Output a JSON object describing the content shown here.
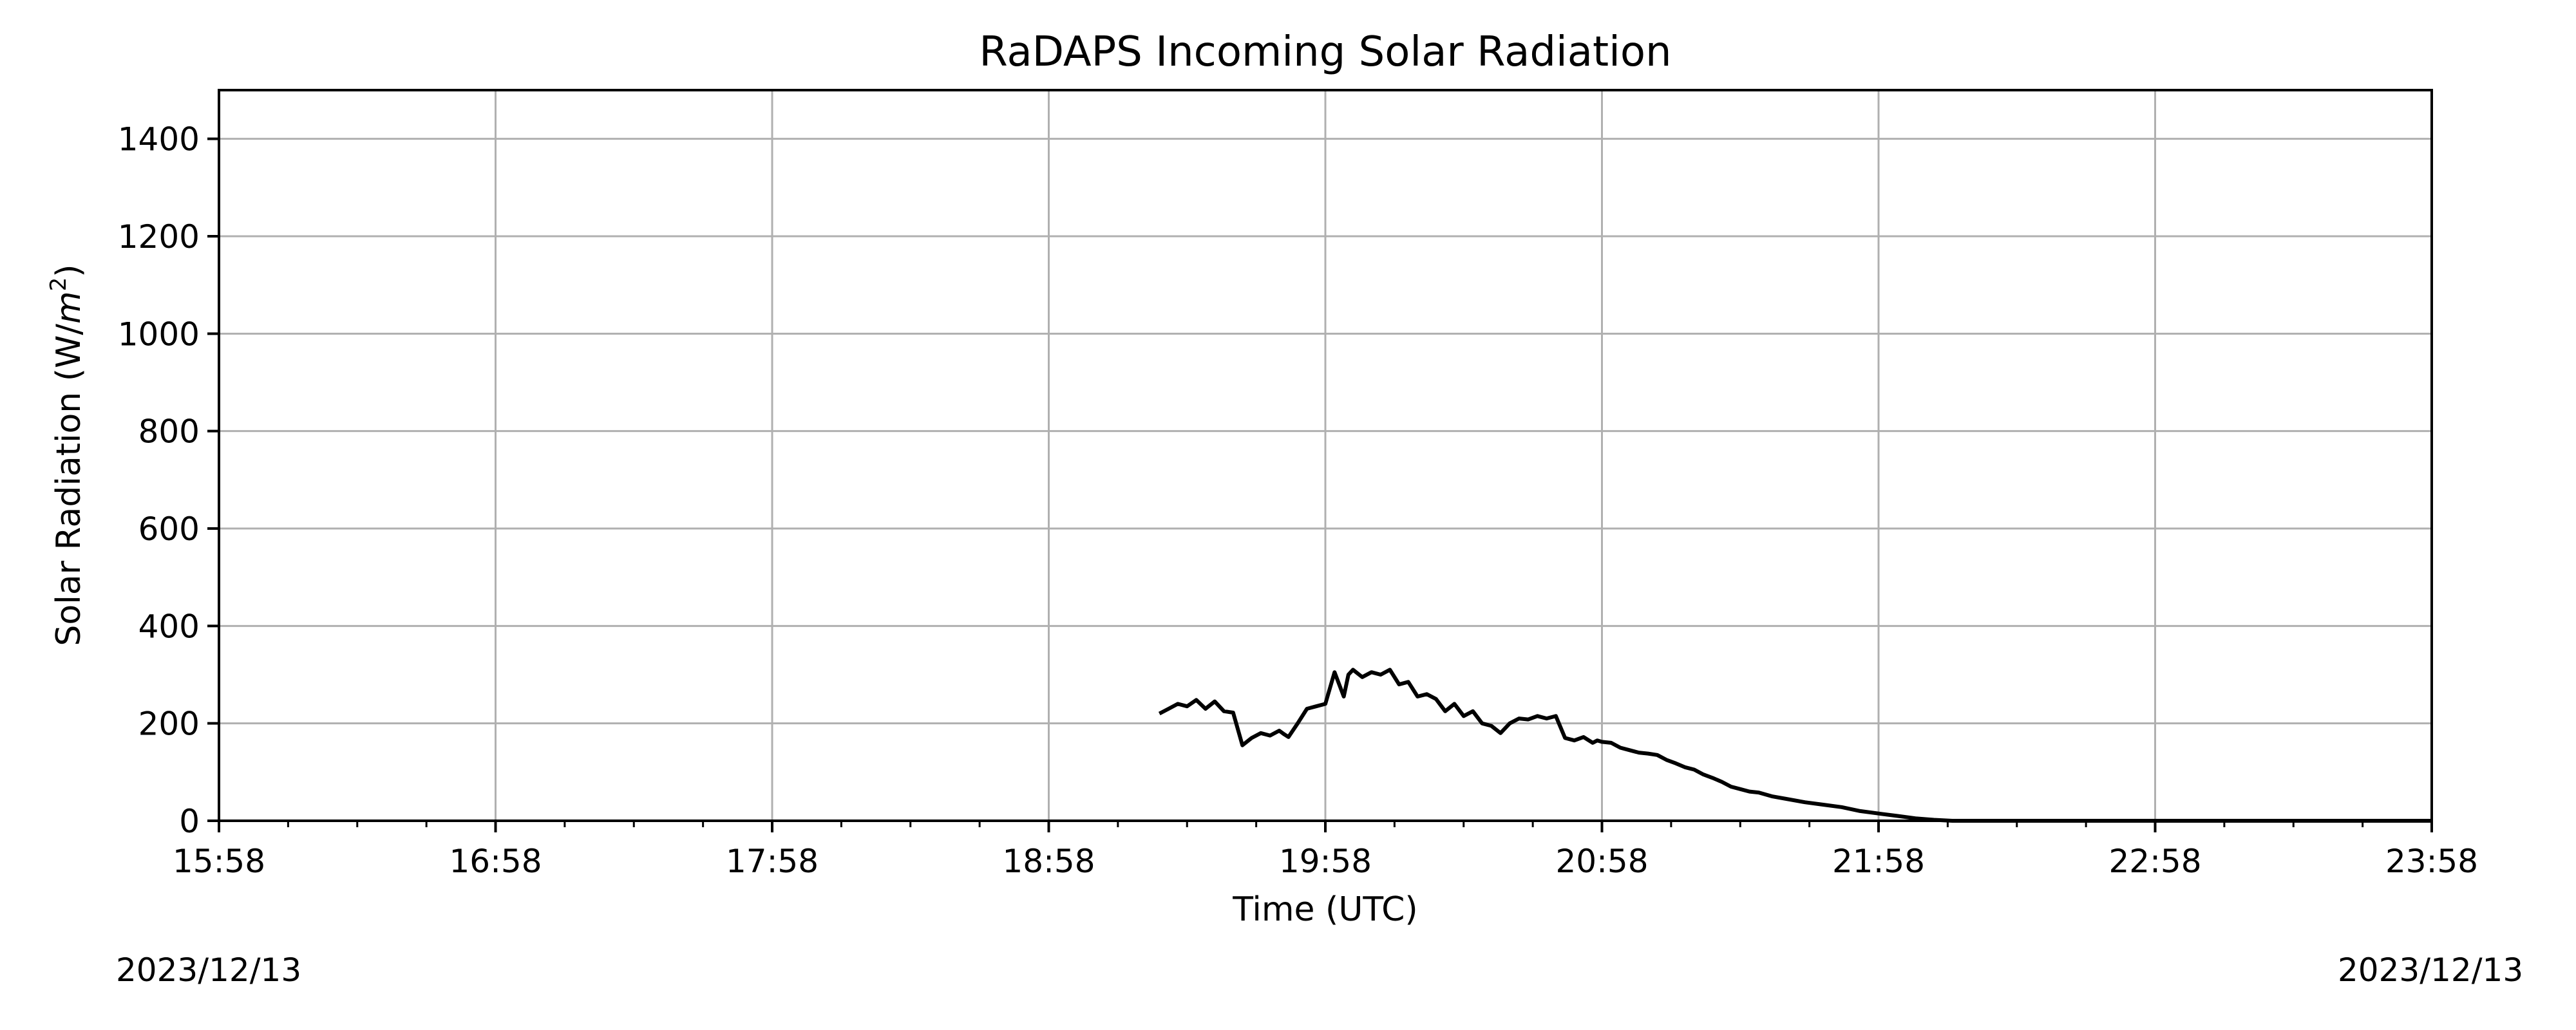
{
  "chart_data": {
    "type": "line",
    "title": "RaDAPS Incoming Solar Radiation",
    "xlabel": "Time (UTC)",
    "ylabel_text": "Solar Radiation (W/",
    "ylabel_unit_base": "m",
    "ylabel_unit_exp": "2",
    "ylabel_close": ")",
    "xlim": [
      "15:58",
      "23:58"
    ],
    "ylim": [
      0,
      1500
    ],
    "x_ticks": [
      "15:58",
      "16:58",
      "17:58",
      "18:58",
      "19:58",
      "20:58",
      "21:58",
      "22:58",
      "23:58"
    ],
    "y_ticks": [
      0,
      200,
      400,
      600,
      800,
      1000,
      1200,
      1400
    ],
    "grid": true,
    "line_color": "#000000",
    "grid_color": "#b0b0b0",
    "series": [
      {
        "x": [
          "19:22",
          "19:24",
          "19:26",
          "19:28",
          "19:30",
          "19:32",
          "19:34",
          "19:36",
          "19:38",
          "19:40",
          "19:42",
          "19:44",
          "19:46",
          "19:48",
          "19:49",
          "19:50",
          "19:52",
          "19:54",
          "19:56",
          "19:58",
          "20:00",
          "20:02",
          "20:03",
          "20:04",
          "20:06",
          "20:08",
          "20:10",
          "20:12",
          "20:14",
          "20:16",
          "20:18",
          "20:20",
          "20:22",
          "20:24",
          "20:26",
          "20:28",
          "20:30",
          "20:32",
          "20:34",
          "20:36",
          "20:38",
          "20:40",
          "20:42",
          "20:44",
          "20:46",
          "20:48",
          "20:50",
          "20:52",
          "20:54",
          "20:56",
          "20:57",
          "20:58",
          "21:00",
          "21:02",
          "21:04",
          "21:06",
          "21:08",
          "21:10",
          "21:12",
          "21:14",
          "21:16",
          "21:18",
          "21:20",
          "21:22",
          "21:24",
          "21:26",
          "21:28",
          "21:30",
          "21:32",
          "21:35",
          "21:38",
          "21:42",
          "21:46",
          "21:50",
          "21:54",
          "21:58",
          "22:02",
          "22:06",
          "22:10",
          "22:14",
          "22:18",
          "22:22",
          "22:30",
          "22:45",
          "23:00",
          "23:15",
          "23:30",
          "23:45",
          "23:58"
        ],
        "y": [
          220,
          230,
          240,
          235,
          248,
          230,
          245,
          225,
          222,
          155,
          170,
          180,
          175,
          185,
          178,
          172,
          200,
          230,
          235,
          240,
          305,
          255,
          300,
          310,
          295,
          305,
          300,
          310,
          280,
          285,
          255,
          260,
          250,
          225,
          240,
          215,
          225,
          200,
          195,
          180,
          200,
          210,
          208,
          215,
          210,
          215,
          170,
          165,
          172,
          160,
          165,
          162,
          160,
          150,
          145,
          140,
          138,
          135,
          125,
          118,
          110,
          105,
          95,
          88,
          80,
          70,
          65,
          60,
          58,
          50,
          45,
          38,
          33,
          28,
          20,
          15,
          10,
          5,
          2,
          0,
          0,
          0,
          0,
          0,
          0,
          0,
          0,
          0,
          0
        ]
      }
    ]
  },
  "footer": {
    "date_left": "2023/12/13",
    "date_right": "2023/12/13"
  }
}
